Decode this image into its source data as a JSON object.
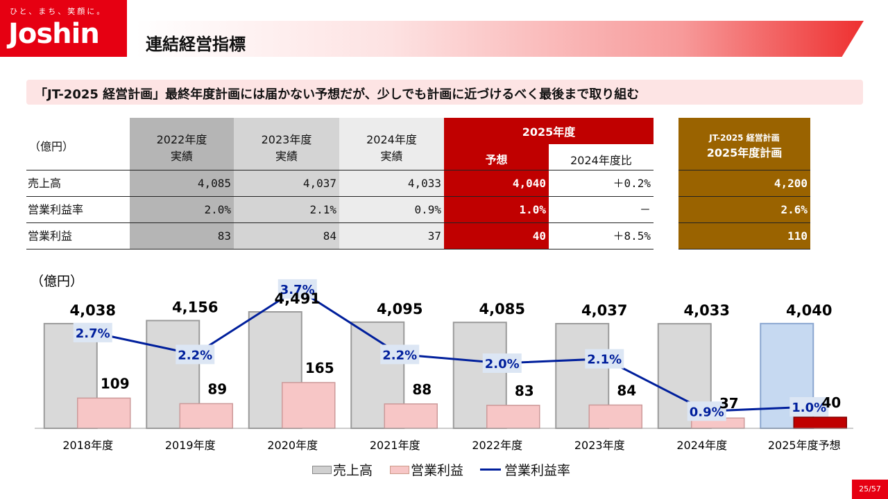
{
  "logo": {
    "tagline": "ひと、まち、笑顔に。",
    "name": "Joshin"
  },
  "header": {
    "title": "連結経営指標"
  },
  "subtitle": "「JT-2025 経営計画」最終年度計画には届かない予想だが、少しでも計画に近づけるべく最後まで取り組む",
  "table": {
    "unit": "（億円）",
    "headers": {
      "y2022": [
        "2022年度",
        "実績"
      ],
      "y2023": [
        "2023年度",
        "実績"
      ],
      "y2024": [
        "2024年度",
        "実績"
      ],
      "y2025": "2025年度",
      "forecast": "予想",
      "vs2024": "2024年度比",
      "plan": [
        "JT-2025 経営計画",
        "2025年度計画"
      ]
    },
    "rows": [
      {
        "label": "売上高",
        "y2022": "4,085",
        "y2023": "4,037",
        "y2024": "4,033",
        "forecast": "4,040",
        "vs2024": "＋0.2%",
        "plan": "4,200"
      },
      {
        "label": "営業利益率",
        "y2022": "2.0%",
        "y2023": "2.1%",
        "y2024": "0.9%",
        "forecast": "1.0%",
        "vs2024": "－",
        "plan": "2.6%"
      },
      {
        "label": "営業利益",
        "y2022": "83",
        "y2023": "84",
        "y2024": "37",
        "forecast": "40",
        "vs2024": "＋8.5%",
        "plan": "110"
      }
    ]
  },
  "chart_data": {
    "type": "bar",
    "ylabel": "（億円）",
    "categories": [
      "2018年度",
      "2019年度",
      "2020年度",
      "2021年度",
      "2022年度",
      "2023年度",
      "2024年度",
      "2025年度予想"
    ],
    "series": [
      {
        "name": "売上高",
        "type": "bar",
        "values": [
          4038,
          4156,
          4491,
          4095,
          4085,
          4037,
          4033,
          4040
        ],
        "labels": [
          "4,038",
          "4,156",
          "4,491",
          "4,095",
          "4,085",
          "4,037",
          "4,033",
          "4,040"
        ]
      },
      {
        "name": "営業利益",
        "type": "bar",
        "values": [
          109,
          89,
          165,
          88,
          83,
          84,
          37,
          40
        ],
        "labels": [
          "109",
          "89",
          "165",
          "88",
          "83",
          "84",
          "37",
          "40"
        ]
      },
      {
        "name": "営業利益率",
        "type": "line",
        "values": [
          2.7,
          2.2,
          3.7,
          2.2,
          2.0,
          2.1,
          0.9,
          1.0
        ],
        "labels": [
          "2.7%",
          "2.2%",
          "3.7%",
          "2.2%",
          "2.0%",
          "2.1%",
          "0.9%",
          "1.0%"
        ]
      }
    ],
    "colors": {
      "sales": "#d9d9d9",
      "sales_forecast": "#c6d9f1",
      "profit": "#f7c6c6",
      "profit_forecast": "#c00000",
      "margin": "#001f9c"
    },
    "grid": false,
    "legend": "bottom"
  },
  "page": "25/57"
}
